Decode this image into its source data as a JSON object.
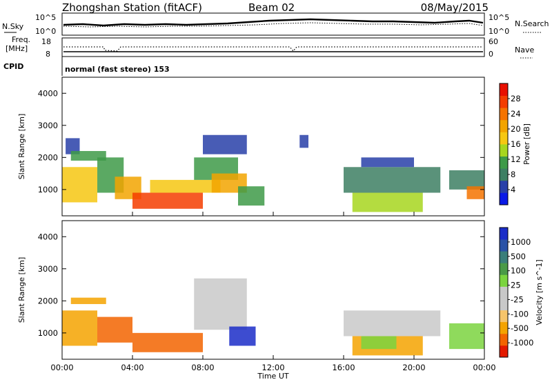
{
  "header": {
    "station": "Zhongshan Station (fitACF)",
    "beam": "Beam 02",
    "date": "08/May/2015"
  },
  "strip_labels": {
    "nsky": "N.Sky",
    "nsky_lo": "10^0",
    "nsky_hi": "10^5",
    "nsearch": "N.Search",
    "nsearch_lo": "10^0",
    "nsearch_hi": "10^5",
    "freq": "Freq.",
    "freq_unit": "[MHz]",
    "freq_lo": "8",
    "freq_hi": "18",
    "nave": "Nave",
    "nave_lo": "0",
    "nave_hi": "60",
    "cpid": "CPID",
    "mode": "normal (fast stereo) 153"
  },
  "x_axis": {
    "label": "Time UT",
    "ticks": [
      "00:00",
      "04:00",
      "08:00",
      "12:00",
      "16:00",
      "20:00",
      "00:00"
    ]
  },
  "colors": {
    "power": [
      "#0a19e6",
      "#2840a8",
      "#3d7f63",
      "#3e9a48",
      "#a7d61f",
      "#f6c712",
      "#f2a400",
      "#f57300",
      "#f43d00",
      "#e81000"
    ],
    "velocity": [
      "#e31a00",
      "#f26400",
      "#f4a300",
      "#f6c46a",
      "#c9c9c9",
      "#c8c8c8",
      "#7bd43f",
      "#4a9a47",
      "#3a7e7a",
      "#2a52a6",
      "#1b2dc8"
    ]
  },
  "chart_data": [
    {
      "type": "heatmap",
      "name": "power-panel",
      "title": "",
      "xlabel": "Time UT",
      "ylabel": "Slant Range [km]",
      "xlim": [
        0,
        24
      ],
      "ylim": [
        180,
        4500
      ],
      "yticks": [
        "1000",
        "2000",
        "3000",
        "4000"
      ],
      "colorbar": {
        "label": "Power [dB]",
        "range": [
          0,
          32
        ],
        "ticks": [
          "4",
          "8",
          "12",
          "16",
          "20",
          "24",
          "28"
        ]
      },
      "regions": [
        {
          "t0": 0.0,
          "t1": 2.0,
          "r0": 600,
          "r1": 1700,
          "value": 18
        },
        {
          "t0": 0.2,
          "t1": 1.0,
          "r0": 2100,
          "r1": 2600,
          "value": 6
        },
        {
          "t0": 0.5,
          "t1": 2.5,
          "r0": 1900,
          "r1": 2200,
          "value": 12
        },
        {
          "t0": 2.0,
          "t1": 3.5,
          "r0": 900,
          "r1": 2000,
          "value": 12
        },
        {
          "t0": 3.0,
          "t1": 4.5,
          "r0": 700,
          "r1": 1400,
          "value": 20
        },
        {
          "t0": 4.0,
          "t1": 8.0,
          "r0": 400,
          "r1": 900,
          "value": 28
        },
        {
          "t0": 5.0,
          "t1": 9.0,
          "r0": 900,
          "r1": 1300,
          "value": 18
        },
        {
          "t0": 7.5,
          "t1": 10.0,
          "r0": 1300,
          "r1": 2000,
          "value": 10
        },
        {
          "t0": 8.0,
          "t1": 10.5,
          "r0": 2100,
          "r1": 2700,
          "value": 6
        },
        {
          "t0": 8.5,
          "t1": 10.5,
          "r0": 900,
          "r1": 1500,
          "value": 20
        },
        {
          "t0": 10.0,
          "t1": 11.5,
          "r0": 500,
          "r1": 1100,
          "value": 10
        },
        {
          "t0": 13.5,
          "t1": 14.0,
          "r0": 2300,
          "r1": 2700,
          "value": 6
        },
        {
          "t0": 16.0,
          "t1": 21.5,
          "r0": 900,
          "r1": 1700,
          "value": 8
        },
        {
          "t0": 16.5,
          "t1": 20.5,
          "r0": 300,
          "r1": 900,
          "value": 14
        },
        {
          "t0": 17.0,
          "t1": 20.0,
          "r0": 1700,
          "r1": 2000,
          "value": 6
        },
        {
          "t0": 22.0,
          "t1": 24.0,
          "r0": 1000,
          "r1": 1600,
          "value": 8
        },
        {
          "t0": 23.0,
          "t1": 24.0,
          "r0": 700,
          "r1": 1100,
          "value": 24
        }
      ]
    },
    {
      "type": "heatmap",
      "name": "velocity-panel",
      "title": "",
      "xlabel": "Time UT",
      "ylabel": "Slant Range [km]",
      "xlim": [
        0,
        24
      ],
      "ylim": [
        180,
        4500
      ],
      "yticks": [
        "1000",
        "2000",
        "3000",
        "4000"
      ],
      "colorbar": {
        "label": "Velocity [m s^-1]",
        "ticks": [
          "1000",
          "500",
          "100",
          "25",
          "-25",
          "-100",
          "-500",
          "-1000"
        ]
      },
      "regions": [
        {
          "t0": 0.0,
          "t1": 2.0,
          "r0": 600,
          "r1": 1700,
          "value": -200
        },
        {
          "t0": 0.5,
          "t1": 2.5,
          "r0": 1900,
          "r1": 2100,
          "value": -150
        },
        {
          "t0": 2.0,
          "t1": 4.0,
          "r0": 700,
          "r1": 1500,
          "value": -300
        },
        {
          "t0": 4.0,
          "t1": 8.0,
          "r0": 400,
          "r1": 1000,
          "value": -400
        },
        {
          "t0": 7.5,
          "t1": 10.5,
          "r0": 1100,
          "r1": 2700,
          "value": 0
        },
        {
          "t0": 9.5,
          "t1": 11.0,
          "r0": 600,
          "r1": 1200,
          "value": 800
        },
        {
          "t0": 16.0,
          "t1": 21.5,
          "r0": 900,
          "r1": 1700,
          "value": 0
        },
        {
          "t0": 16.5,
          "t1": 20.5,
          "r0": 300,
          "r1": 900,
          "value": -80
        },
        {
          "t0": 17.0,
          "t1": 19.0,
          "r0": 500,
          "r1": 900,
          "value": 150
        },
        {
          "t0": 22.0,
          "t1": 24.0,
          "r0": 500,
          "r1": 1300,
          "value": 300
        }
      ]
    }
  ]
}
